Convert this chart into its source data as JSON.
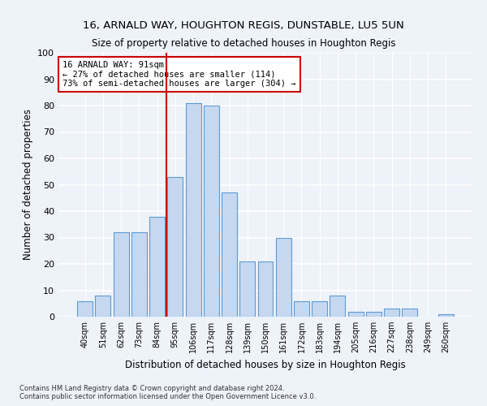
{
  "title1": "16, ARNALD WAY, HOUGHTON REGIS, DUNSTABLE, LU5 5UN",
  "title2": "Size of property relative to detached houses in Houghton Regis",
  "xlabel": "Distribution of detached houses by size in Houghton Regis",
  "ylabel": "Number of detached properties",
  "categories": [
    "40sqm",
    "51sqm",
    "62sqm",
    "73sqm",
    "84sqm",
    "95sqm",
    "106sqm",
    "117sqm",
    "128sqm",
    "139sqm",
    "150sqm",
    "161sqm",
    "172sqm",
    "183sqm",
    "194sqm",
    "205sqm",
    "216sqm",
    "227sqm",
    "238sqm",
    "249sqm",
    "260sqm"
  ],
  "values": [
    6,
    8,
    32,
    32,
    38,
    53,
    81,
    80,
    47,
    21,
    21,
    30,
    6,
    6,
    8,
    2,
    2,
    3,
    3,
    0,
    1
  ],
  "bar_color": "#c5d8f0",
  "bar_edge_color": "#5b9bd5",
  "vline_x_index": 4,
  "vline_color": "#cc0000",
  "annotation_text": "16 ARNALD WAY: 91sqm\n← 27% of detached houses are smaller (114)\n73% of semi-detached houses are larger (304) →",
  "annotation_box_color": "#ffffff",
  "annotation_box_edge": "#cc0000",
  "ylim": [
    0,
    100
  ],
  "yticks": [
    0,
    10,
    20,
    30,
    40,
    50,
    60,
    70,
    80,
    90,
    100
  ],
  "bg_color": "#eef2f9",
  "grid_color": "#ffffff",
  "footer1": "Contains HM Land Registry data © Crown copyright and database right 2024.",
  "footer2": "Contains public sector information licensed under the Open Government Licence v3.0."
}
